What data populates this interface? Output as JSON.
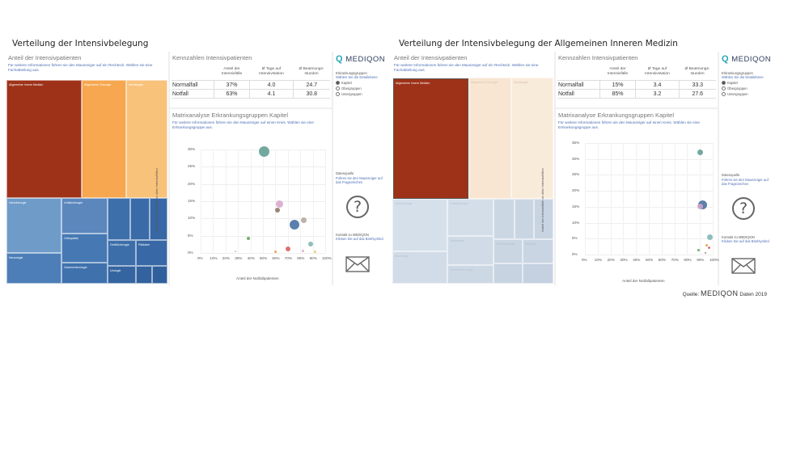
{
  "left": {
    "page_title": "Verteilung der Intensivbelegung",
    "treemap": {
      "title": "Anteil der Intensivpatienten",
      "subtitle": "Für weitere Informationen führen sie den Mauszeiger auf ein Rechteck. Wählen sie eine Fachabteilung aus.",
      "labels": [
        "Allgemeine Innere Medizin",
        "Allgemeine Chirurgie",
        "Kardiologie",
        "Herzchirurgie",
        "Unfallchirurgie",
        "Orthopädie",
        "Gefäßchirurgie",
        "Pädiatrie",
        "Neurologie",
        "Gastroenterologie",
        "Urologie"
      ]
    },
    "kpi": {
      "title": "Kennzahlen Intensivpatienten",
      "headers": [
        "Anteil der Intensivfälle",
        "Ø Tage auf Intensivstation",
        "Ø Beatmungs-stunden"
      ],
      "rows": [
        {
          "label": "Normalfall",
          "values": [
            "37%",
            "4.0",
            "24.7"
          ]
        },
        {
          "label": "Notfall",
          "values": [
            "63%",
            "4.1",
            "30.8"
          ]
        }
      ]
    },
    "matrix": {
      "title": "Matrixanalyse Erkrankungsgruppen Kapitel",
      "subtitle": "Für weitere Informationen führen sie den Mauszeiger auf einen Kreis. Wählen sie eine Erkrankungsgruppe aus.",
      "y_ticks": [
        "30%",
        "25%",
        "20%",
        "15%",
        "10%",
        "5%",
        "0%"
      ],
      "x_ticks": [
        "0%",
        "10%",
        "20%",
        "30%",
        "40%",
        "50%",
        "60%",
        "70%",
        "80%",
        "90%",
        "100%"
      ],
      "xlabel": "Anteil der Notfallpatienten",
      "ylabel": "Anteil der Intensivfälle an allen Intensivfällen"
    }
  },
  "right": {
    "page_title": "Verteilung der Intensivbelegung der Allgemeinen Inneren Medizin",
    "treemap": {
      "title": "Anteil der Intensivpatienten",
      "subtitle": "Für weitere Informationen führen sie den Mauszeiger auf ein Rechteck. Wählen sie eine Fachabteilung aus.",
      "labels": [
        "Allgemeine Innere Medizin",
        "Allgemeine Chirurgie",
        "Kardiologie",
        "Herzchirurgie",
        "Unfallchirurgie",
        "Orthopädie",
        "Gefäßchirurgie",
        "Pädiatrie",
        "Neurologie",
        "Gastroenterologie"
      ]
    },
    "kpi": {
      "title": "Kennzahlen Intensivpatienten",
      "headers": [
        "Anteil der Intensivfälle",
        "Ø Tage auf Intensivstation",
        "Ø Beatmungs-stunden"
      ],
      "rows": [
        {
          "label": "Normalfall",
          "values": [
            "15%",
            "3.4",
            "33.3"
          ]
        },
        {
          "label": "Notfall",
          "values": [
            "85%",
            "3.2",
            "27.6"
          ]
        }
      ]
    },
    "matrix": {
      "title": "Matrixanalyse Erkrankungsgruppen Kapitel",
      "subtitle": "Für weitere Informationen führen sie den Mauszeiger auf einen Kreis. Wählen sie eine Erkrankungsgruppe aus.",
      "y_ticks": [
        "35%",
        "30%",
        "25%",
        "20%",
        "15%",
        "10%",
        "5%",
        "0%"
      ],
      "x_ticks": [
        "0%",
        "10%",
        "20%",
        "30%",
        "40%",
        "50%",
        "60%",
        "70%",
        "80%",
        "90%",
        "100%"
      ],
      "xlabel": "Anteil der Notfallpatienten",
      "ylabel": "Anteil der Intensivfälle an allen Intensivfällen"
    }
  },
  "sidebar": {
    "logo": "MEDIQON",
    "group_title": "Erkrankungsgruppen",
    "group_sub": "Wählen Sie die Detailebene",
    "options": [
      "Kapitel",
      "Obergruppen",
      "Untergruppen"
    ],
    "selected": "Kapitel",
    "source_title": "Datenquelle",
    "source_text": "Führen sie den Mauszeiger auf das Fragezeichen",
    "contact_title": "Kontakt zu MEDIQON",
    "contact_text": "Klicken Sie auf das Briefsymbol"
  },
  "source": {
    "prefix": "Quelle:",
    "brand": "MEDIQON",
    "suffix": "Daten 2019"
  },
  "chart_data": [
    {
      "type": "scatter",
      "title": "Matrixanalyse Erkrankungsgruppen Kapitel",
      "xlabel": "Anteil der Notfallpatienten",
      "ylabel": "Anteil der Intensivfälle an allen Intensivfällen",
      "xlim": [
        0,
        100
      ],
      "ylim": [
        0,
        30
      ],
      "points": [
        {
          "x": 51,
          "y": 29.5,
          "size": 6.5,
          "color": "#5a9a8e"
        },
        {
          "x": 63,
          "y": 14.2,
          "size": 4.5,
          "color": "#d6a3c9"
        },
        {
          "x": 62,
          "y": 12.5,
          "size": 3,
          "color": "#8a7063"
        },
        {
          "x": 83,
          "y": 9.5,
          "size": 3.5,
          "color": "#b0a49c"
        },
        {
          "x": 75,
          "y": 8.2,
          "size": 6,
          "color": "#3e6a9e"
        },
        {
          "x": 38,
          "y": 4.2,
          "size": 2,
          "color": "#5c9e55"
        },
        {
          "x": 88,
          "y": 2.5,
          "size": 3,
          "color": "#7ab3b0"
        },
        {
          "x": 70,
          "y": 1.2,
          "size": 3,
          "color": "#d65a5a"
        },
        {
          "x": 28,
          "y": 0.5,
          "size": 1,
          "color": "#d6a3c9"
        },
        {
          "x": 60,
          "y": 0.4,
          "size": 1.5,
          "color": "#e29a3e"
        },
        {
          "x": 82,
          "y": 0.6,
          "size": 1.5,
          "color": "#d6a3c9"
        },
        {
          "x": 92,
          "y": 0.3,
          "size": 1.5,
          "color": "#e8c46a"
        }
      ]
    },
    {
      "type": "scatter",
      "title": "Matrixanalyse Erkrankungsgruppen Kapitel",
      "xlabel": "Anteil der Notfallpatienten",
      "ylabel": "Anteil der Intensivfälle an allen Intensivfällen",
      "xlim": [
        0,
        100
      ],
      "ylim": [
        0,
        35
      ],
      "points": [
        {
          "x": 90,
          "y": 32,
          "size": 3.5,
          "color": "#5a9a8e"
        },
        {
          "x": 92,
          "y": 15.5,
          "size": 5.5,
          "color": "#3e6a9e"
        },
        {
          "x": 90,
          "y": 15.2,
          "size": 3.5,
          "color": "#d6a3c9"
        },
        {
          "x": 98,
          "y": 5.5,
          "size": 3.5,
          "color": "#7ab3b0"
        },
        {
          "x": 95,
          "y": 3,
          "size": 1.5,
          "color": "#e29a3e"
        },
        {
          "x": 97,
          "y": 2.2,
          "size": 1.5,
          "color": "#d65a5a"
        },
        {
          "x": 89,
          "y": 1.5,
          "size": 1.5,
          "color": "#5c9e55"
        },
        {
          "x": 94,
          "y": 0.5,
          "size": 1,
          "color": "#8a7063"
        }
      ]
    }
  ]
}
